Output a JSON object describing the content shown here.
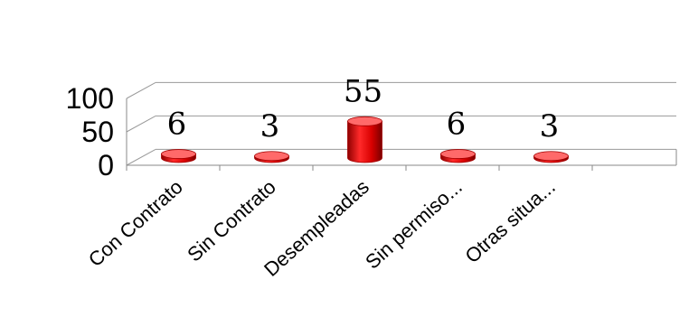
{
  "chart_data": {
    "type": "bar",
    "categories": [
      "Con Contrato",
      "Sin Contrato",
      "Desempleadas",
      "Sin permiso...",
      "Otras situa..."
    ],
    "values": [
      6,
      3,
      55,
      6,
      3
    ],
    "data_labels": [
      "6",
      "3",
      "55",
      "6",
      "3"
    ],
    "yticks": [
      "0",
      "50",
      "100"
    ],
    "ylim": [
      0,
      100
    ],
    "grid": true,
    "legend": "none",
    "bar_color": "#e8090a",
    "bar_dark": "#a30000",
    "bar_light": "#ff6a6a"
  }
}
